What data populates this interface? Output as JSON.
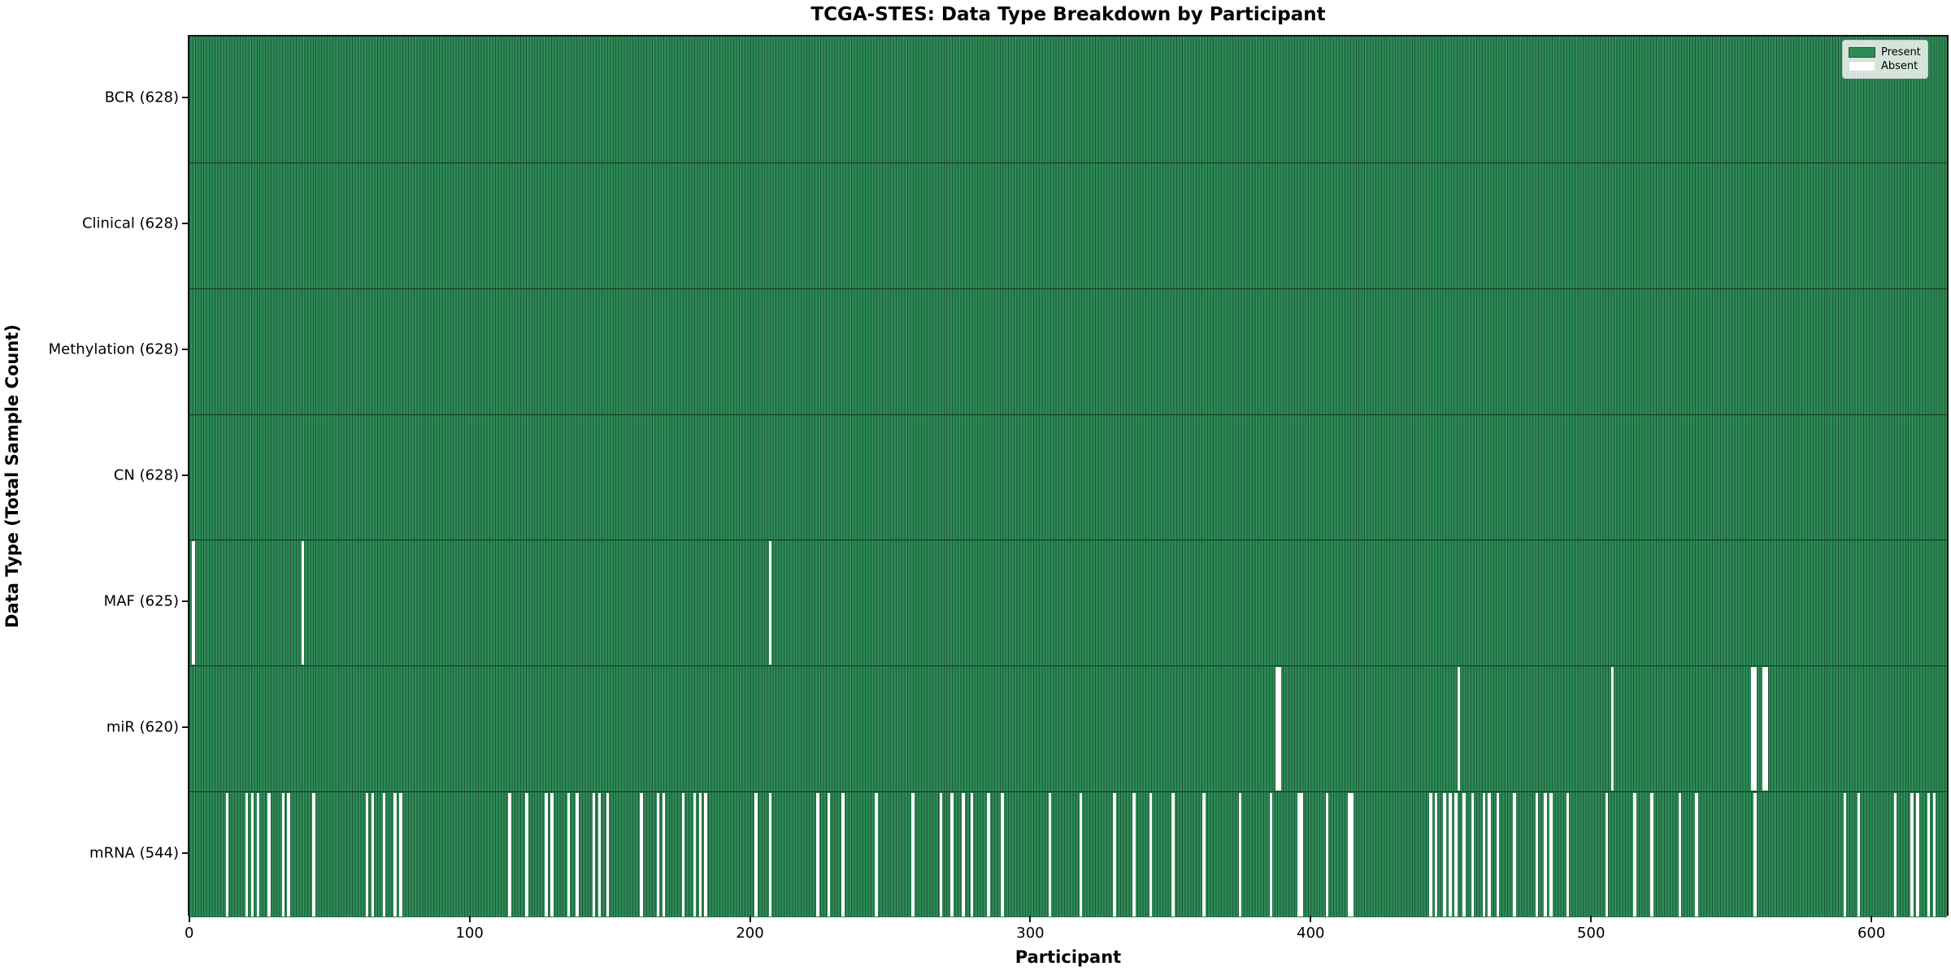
{
  "chart_data": {
    "type": "heatmap",
    "title": "TCGA-STES: Data Type Breakdown by Participant",
    "xlabel": "Participant",
    "ylabel": "Data Type (Total Sample Count)",
    "n_participants": 628,
    "xlim": [
      -0.5,
      627.5
    ],
    "x_ticks": [
      0,
      100,
      200,
      300,
      400,
      500,
      600
    ],
    "grid": false,
    "legend": {
      "position": "upper right",
      "entries": [
        {
          "label": "Present",
          "color": "#2e8b57"
        },
        {
          "label": "Absent",
          "color": "#ffffff"
        }
      ]
    },
    "colors": {
      "present_fill": "#2e8b57",
      "bar_edge": "#1d5838",
      "absent_fill": "#ffffff",
      "spine": "#141414",
      "background": "#ffffff"
    },
    "rows": [
      {
        "label": "BCR (628)",
        "data_type": "BCR",
        "present_count": 628,
        "absent_participants": []
      },
      {
        "label": "Clinical (628)",
        "data_type": "Clinical",
        "present_count": 628,
        "absent_participants": []
      },
      {
        "label": "Methylation (628)",
        "data_type": "Methylation",
        "present_count": 628,
        "absent_participants": []
      },
      {
        "label": "CN (628)",
        "data_type": "CN",
        "present_count": 628,
        "absent_participants": []
      },
      {
        "label": "MAF (625)",
        "data_type": "MAF",
        "present_count": 625,
        "absent_participants": [
          1,
          40,
          207
        ]
      },
      {
        "label": "miR (620)",
        "data_type": "miR",
        "present_count": 620,
        "absent_participants": [
          388,
          389,
          453,
          508,
          558,
          559,
          562,
          563
        ]
      },
      {
        "label": "mRNA (544)",
        "data_type": "mRNA",
        "present_count": 544,
        "absent_participants": [
          13,
          20,
          22,
          24,
          28,
          33,
          35,
          44,
          63,
          65,
          69,
          73,
          75,
          114,
          120,
          127,
          129,
          135,
          138,
          144,
          146,
          149,
          161,
          167,
          169,
          176,
          180,
          182,
          184,
          202,
          207,
          224,
          228,
          233,
          245,
          258,
          268,
          272,
          276,
          279,
          285,
          290,
          307,
          318,
          330,
          337,
          343,
          351,
          362,
          375,
          386,
          396,
          397,
          406,
          414,
          415,
          443,
          445,
          448,
          450,
          452,
          455,
          458,
          462,
          464,
          467,
          473,
          481,
          484,
          486,
          492,
          506,
          516,
          522,
          532,
          538,
          559,
          591,
          596,
          609,
          615,
          617,
          621,
          623
        ]
      }
    ]
  }
}
